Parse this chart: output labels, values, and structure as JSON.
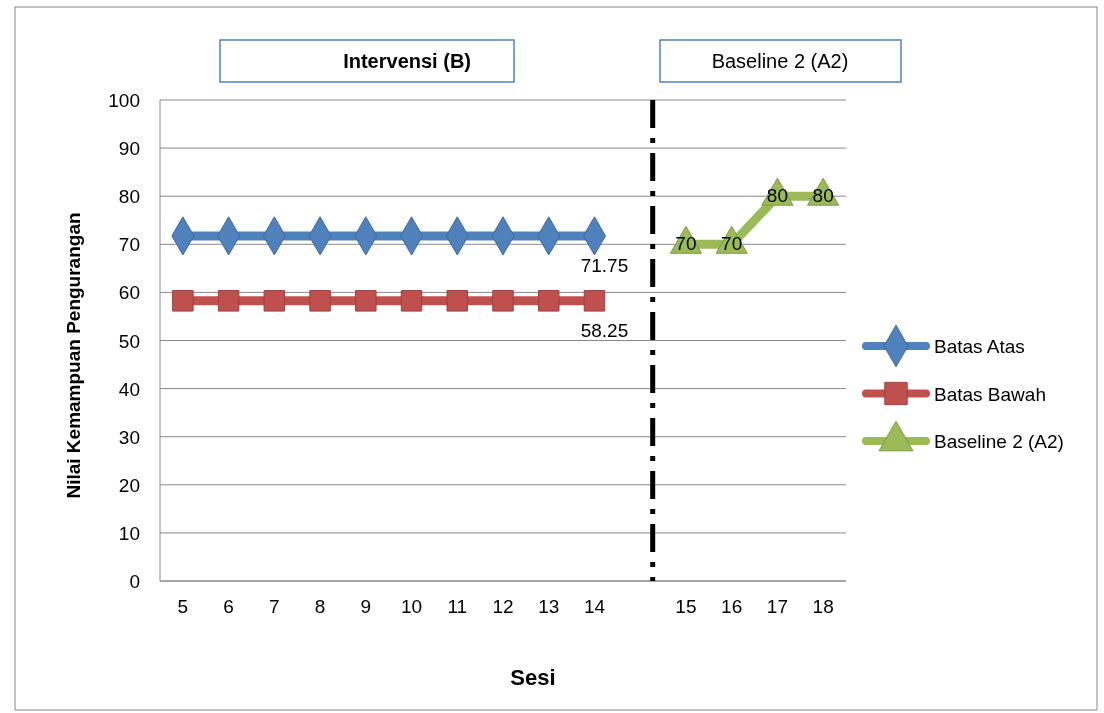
{
  "chart_data": {
    "type": "line",
    "xlabel": "Sesi",
    "ylabel": "Nilai Kemampuan Pengurangan",
    "annotations": [
      "Intervensi (B)",
      "Baseline 2 (A2)"
    ],
    "categories": [
      "5",
      "6",
      "7",
      "8",
      "9",
      "10",
      "11",
      "12",
      "13",
      "14",
      null,
      "15",
      "16",
      "17",
      "18"
    ],
    "series": [
      {
        "name": "Batas Atas",
        "color": "#4f81bd",
        "marker": "diamond",
        "values": [
          71.75,
          71.75,
          71.75,
          71.75,
          71.75,
          71.75,
          71.75,
          71.75,
          71.75,
          71.75,
          null,
          null,
          null,
          null,
          null
        ],
        "value_labels": [
          null,
          null,
          null,
          null,
          null,
          null,
          null,
          null,
          null,
          "71.75",
          null,
          null,
          null,
          null,
          null
        ]
      },
      {
        "name": "Batas Bawah",
        "color": "#c0504d",
        "marker": "square",
        "values": [
          58.25,
          58.25,
          58.25,
          58.25,
          58.25,
          58.25,
          58.25,
          58.25,
          58.25,
          58.25,
          null,
          null,
          null,
          null,
          null
        ],
        "value_labels": [
          null,
          null,
          null,
          null,
          null,
          null,
          null,
          null,
          null,
          "58.25",
          null,
          null,
          null,
          null,
          null
        ]
      },
      {
        "name": "Baseline 2 (A2)",
        "color": "#9bbb59",
        "marker": "triangle",
        "values": [
          null,
          null,
          null,
          null,
          null,
          null,
          null,
          null,
          null,
          null,
          null,
          70,
          70,
          80,
          80
        ],
        "value_labels": [
          null,
          null,
          null,
          null,
          null,
          null,
          null,
          null,
          null,
          null,
          null,
          "70",
          "70",
          "80",
          "80"
        ]
      }
    ],
    "ylim": [
      0,
      100
    ],
    "yticks": [
      0,
      10,
      20,
      30,
      40,
      50,
      60,
      70,
      80,
      90,
      100
    ],
    "grid": "y",
    "legend": "right"
  }
}
